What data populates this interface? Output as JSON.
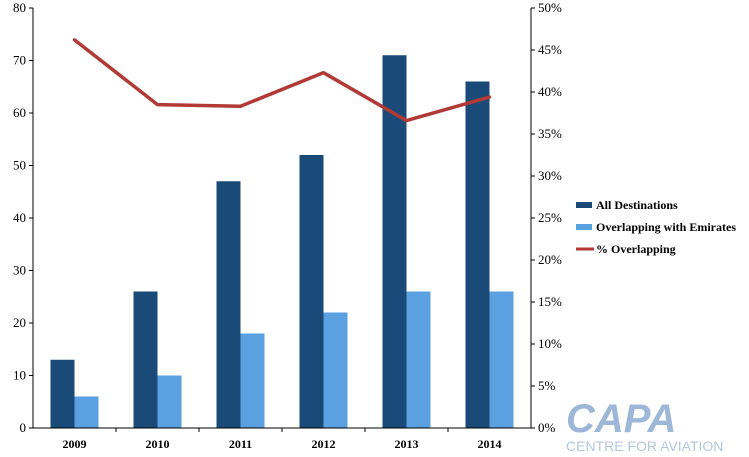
{
  "chart_data": {
    "type": "bar",
    "categories": [
      "2009",
      "2010",
      "2011",
      "2012",
      "2013",
      "2014"
    ],
    "series": [
      {
        "name": "All Destinations",
        "type": "bar",
        "axis": "left",
        "values": [
          13,
          26,
          47,
          52,
          71,
          66
        ]
      },
      {
        "name": "Overlapping with Emirates",
        "type": "bar",
        "axis": "left",
        "values": [
          6,
          10,
          18,
          22,
          26,
          26
        ]
      },
      {
        "name": "% Overlapping",
        "type": "line",
        "axis": "right",
        "values": [
          46.2,
          38.5,
          38.3,
          42.3,
          36.6,
          39.4
        ]
      }
    ],
    "ylim": [
      0,
      80
    ],
    "yticks": [
      "0",
      "10",
      "20",
      "30",
      "40",
      "50",
      "60",
      "70",
      "80"
    ],
    "y2lim": [
      0,
      50
    ],
    "y2ticks": [
      "0%",
      "5%",
      "10%",
      "15%",
      "20%",
      "25%",
      "30%",
      "35%",
      "40%",
      "45%",
      "50%"
    ],
    "title": "",
    "xlabel": "",
    "ylabel": "",
    "y2label": "",
    "grid": false,
    "legend_position": "right"
  },
  "colors": {
    "all_destinations": "#1a4a78",
    "overlapping": "#5ba0e0",
    "pct_line": "#b23a36",
    "axis": "#000000"
  },
  "logo": {
    "main": "CAPA",
    "sub": "CENTRE FOR AVIATION"
  }
}
